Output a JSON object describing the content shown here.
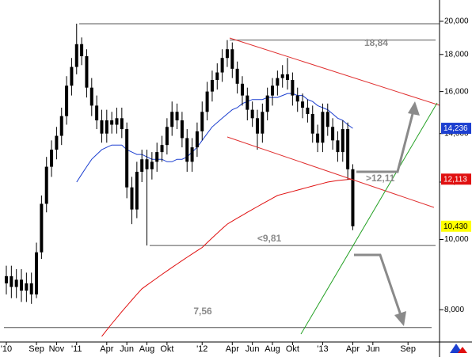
{
  "chart_data": {
    "type": "candlestick",
    "color": "#000000",
    "log_scale": true,
    "ylim": [
      7220,
      21400
    ],
    "yticks": [
      {
        "value": 8000,
        "label": "8,000"
      },
      {
        "value": 10000,
        "label": "10,000"
      },
      {
        "value": 12000,
        "label": "12,000"
      },
      {
        "value": 14000,
        "label": "14,000"
      },
      {
        "value": 16000,
        "label": "16,000"
      },
      {
        "value": 18000,
        "label": "18,000"
      },
      {
        "value": 20000,
        "label": "20,000"
      }
    ],
    "categories": [
      "'10",
      null,
      null,
      null,
      null,
      null,
      "Sep",
      null,
      null,
      null,
      "Nov",
      null,
      null,
      null,
      "'11",
      null,
      null,
      null,
      null,
      null,
      "Apr",
      null,
      null,
      null,
      "Jun",
      null,
      null,
      null,
      "Aug",
      null,
      null,
      null,
      "Okt",
      null,
      null,
      null,
      null,
      null,
      null,
      "'12",
      null,
      null,
      null,
      null,
      null,
      "Apr",
      null,
      null,
      null,
      "Jun",
      null,
      null,
      null,
      "Aug",
      null,
      null,
      null,
      "Okt",
      null,
      null,
      null,
      null,
      null,
      "'13",
      null,
      null,
      null,
      null,
      null,
      "Apr",
      null,
      null,
      null,
      "Jun",
      null,
      null,
      null,
      null,
      null,
      null,
      "Sep",
      null,
      null,
      null,
      null,
      null
    ],
    "open": [
      8700,
      8900,
      8600,
      8800,
      8500,
      8700,
      8400,
      9600,
      11200,
      12600,
      13300,
      13900,
      14800,
      16300,
      17300,
      18600,
      17900,
      16200,
      15300,
      14600,
      14000,
      14600,
      14400,
      14700,
      14200,
      11800,
      11000,
      12400,
      12900,
      12500,
      12800,
      13200,
      13500,
      14300,
      15000,
      14600,
      13800,
      12800,
      13400,
      14100,
      15000,
      16000,
      16600,
      17000,
      17800,
      18300,
      17200,
      16400,
      15800,
      15100,
      14700,
      14000,
      15000,
      15800,
      16300,
      16700,
      16900,
      16600,
      15800,
      15500,
      15200,
      14900,
      14000,
      13600,
      15000,
      14300,
      13700,
      13200,
      14200,
      12500,
      null,
      null,
      null,
      null,
      null,
      null,
      null,
      null,
      null,
      null,
      null,
      null,
      null,
      null,
      null,
      null
    ],
    "high": [
      9200,
      9200,
      9100,
      9100,
      9000,
      9000,
      9900,
      11500,
      13000,
      13700,
      14300,
      15200,
      16800,
      17800,
      19850,
      19000,
      18300,
      16700,
      15800,
      15100,
      15100,
      15000,
      15200,
      15200,
      14500,
      12200,
      12800,
      13300,
      13300,
      13200,
      13600,
      13900,
      14700,
      15500,
      15400,
      15000,
      14200,
      13800,
      14500,
      15500,
      16500,
      17100,
      17500,
      18300,
      18840,
      18700,
      17600,
      16800,
      16200,
      15500,
      15100,
      15400,
      16200,
      16700,
      17100,
      17400,
      17800,
      17000,
      16200,
      15900,
      15600,
      15300,
      14400,
      15400,
      15400,
      14700,
      14100,
      14600,
      14500,
      12700,
      null,
      null,
      null,
      null,
      null,
      null,
      null,
      null,
      null,
      null,
      null,
      null,
      null,
      null,
      null,
      null
    ],
    "low": [
      8400,
      8300,
      8300,
      8200,
      8200,
      8150,
      8300,
      9400,
      10900,
      12200,
      12900,
      13500,
      14400,
      15800,
      16900,
      17400,
      15700,
      14800,
      14200,
      13600,
      13600,
      14000,
      14000,
      13800,
      11400,
      10500,
      10700,
      12000,
      9810,
      12100,
      12400,
      12800,
      13100,
      13900,
      14200,
      13400,
      12400,
      12400,
      13000,
      13700,
      14600,
      15500,
      16100,
      16500,
      17300,
      16700,
      15900,
      15300,
      14600,
      14300,
      13300,
      13600,
      14600,
      15300,
      15800,
      16200,
      16100,
      15300,
      15000,
      14700,
      14500,
      13600,
      13200,
      13200,
      13900,
      13300,
      12800,
      12800,
      12100,
      10300,
      null,
      null,
      null,
      null,
      null,
      null,
      null,
      null,
      null,
      null,
      null,
      null,
      null,
      null,
      null,
      null
    ],
    "close": [
      8900,
      8600,
      8800,
      8500,
      8700,
      8400,
      9600,
      11200,
      12600,
      13300,
      13900,
      14800,
      16300,
      17300,
      18600,
      17900,
      16200,
      15300,
      14600,
      14000,
      14600,
      14400,
      14700,
      14200,
      11800,
      11000,
      12400,
      12900,
      12500,
      12800,
      13200,
      13500,
      14300,
      15000,
      14600,
      13800,
      12800,
      13400,
      14100,
      15000,
      16000,
      16600,
      17000,
      17800,
      18300,
      17200,
      16400,
      15800,
      15100,
      14700,
      14000,
      15000,
      15800,
      16300,
      16700,
      16900,
      16600,
      15800,
      15500,
      15200,
      14900,
      14000,
      13600,
      15000,
      14300,
      13700,
      13200,
      14200,
      12500,
      10430,
      null,
      null,
      null,
      null,
      null,
      null,
      null,
      null,
      null,
      null,
      null,
      null,
      null,
      null,
      null,
      null
    ],
    "moving_averages": [
      {
        "color": "#1c3fd0",
        "values": [
          null,
          null,
          null,
          null,
          null,
          null,
          null,
          null,
          null,
          null,
          null,
          null,
          null,
          null,
          12000,
          12300,
          12600,
          12900,
          13100,
          13300,
          13400,
          13500,
          13500,
          13500,
          13300,
          13200,
          13100,
          13100,
          13000,
          12900,
          12900,
          12900,
          12800,
          12800,
          12900,
          12900,
          13000,
          13200,
          13400,
          13700,
          14000,
          14300,
          14500,
          14700,
          14900,
          15100,
          15200,
          15400,
          15500,
          15600,
          15600,
          15600,
          15700,
          15700,
          15700,
          15800,
          15900,
          15900,
          15800,
          15800,
          15600,
          15500,
          15300,
          15200,
          15100,
          14900,
          14700,
          14600,
          14400,
          14236,
          null,
          null,
          null,
          null,
          null,
          null,
          null,
          null,
          null,
          null,
          null,
          null,
          null,
          null,
          null,
          null
        ]
      },
      {
        "color": "#e01010",
        "values": [
          null,
          null,
          null,
          null,
          null,
          null,
          null,
          null,
          null,
          null,
          null,
          null,
          null,
          null,
          null,
          null,
          null,
          null,
          null,
          7350,
          7500,
          7650,
          7800,
          7950,
          8100,
          8250,
          8400,
          8550,
          8650,
          8750,
          8850,
          8950,
          9050,
          9150,
          9250,
          9350,
          9450,
          9550,
          9650,
          9750,
          9900,
          10050,
          10200,
          10350,
          10500,
          10600,
          10700,
          10800,
          10900,
          11000,
          11100,
          11200,
          11300,
          11400,
          11500,
          11550,
          11600,
          11650,
          11700,
          11750,
          11800,
          11850,
          11900,
          11950,
          12000,
          12030,
          12060,
          12080,
          12100,
          12113,
          null,
          null,
          null,
          null,
          null,
          null,
          null,
          null,
          null,
          null,
          null,
          null,
          null,
          null,
          null,
          null
        ]
      }
    ],
    "price_markers": [
      {
        "value": 14236,
        "label": "14,236",
        "color": "#1c3fd0"
      },
      {
        "value": 12113,
        "label": "12,113",
        "color": "#e01010"
      },
      {
        "value": 10430,
        "label": "10,430",
        "color": "#ffff00"
      }
    ],
    "levels": [
      {
        "value": 18840,
        "label": "18,84"
      },
      {
        "value": 9810,
        "label": "<9,81"
      },
      {
        "value": 7560,
        "label": "7,56"
      }
    ],
    "annotations": [
      ">12,11"
    ]
  }
}
